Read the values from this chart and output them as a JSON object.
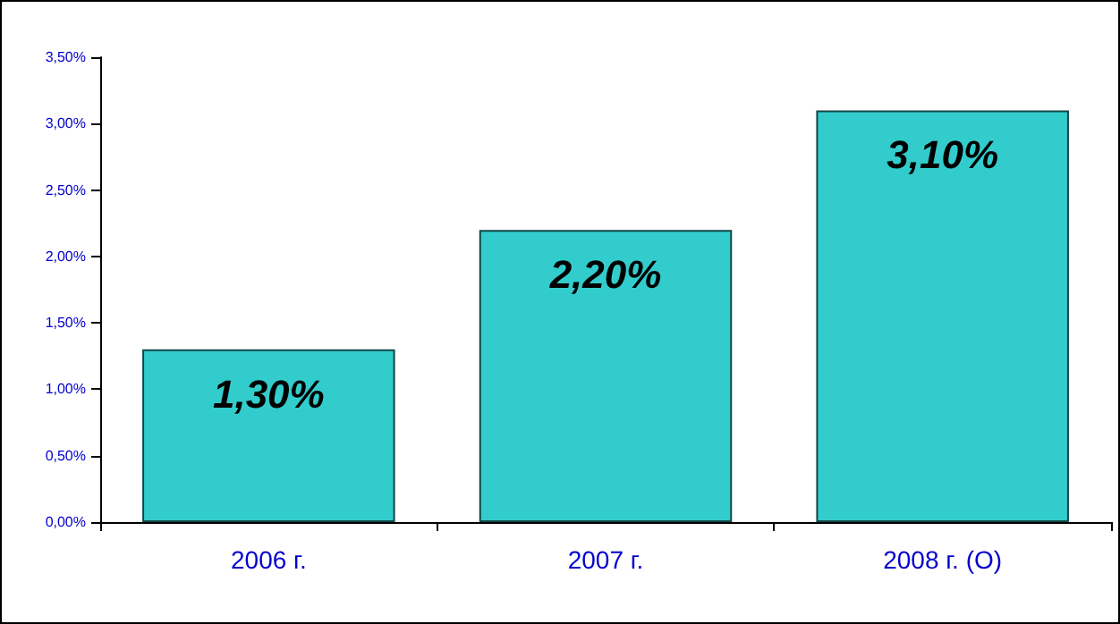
{
  "chart_data": {
    "type": "bar",
    "categories": [
      "2006 г.",
      "2007 г.",
      "2008 г. (О)"
    ],
    "values": [
      1.3,
      2.2,
      3.1
    ],
    "value_labels": [
      "1,30%",
      "2,20%",
      "3,10%"
    ],
    "color": "#33cccc",
    "ylim": [
      0,
      3.5
    ],
    "yticks": [
      {
        "value": 0,
        "label": "0,00%"
      },
      {
        "value": 0.5,
        "label": "0,50%"
      },
      {
        "value": 1,
        "label": "1,00%"
      },
      {
        "value": 1.5,
        "label": "1,50%"
      },
      {
        "value": 2,
        "label": "2,00%"
      },
      {
        "value": 2.5,
        "label": "2,50%"
      },
      {
        "value": 3,
        "label": "3,00%"
      },
      {
        "value": 3.5,
        "label": "3,50%"
      }
    ],
    "grid": false
  }
}
